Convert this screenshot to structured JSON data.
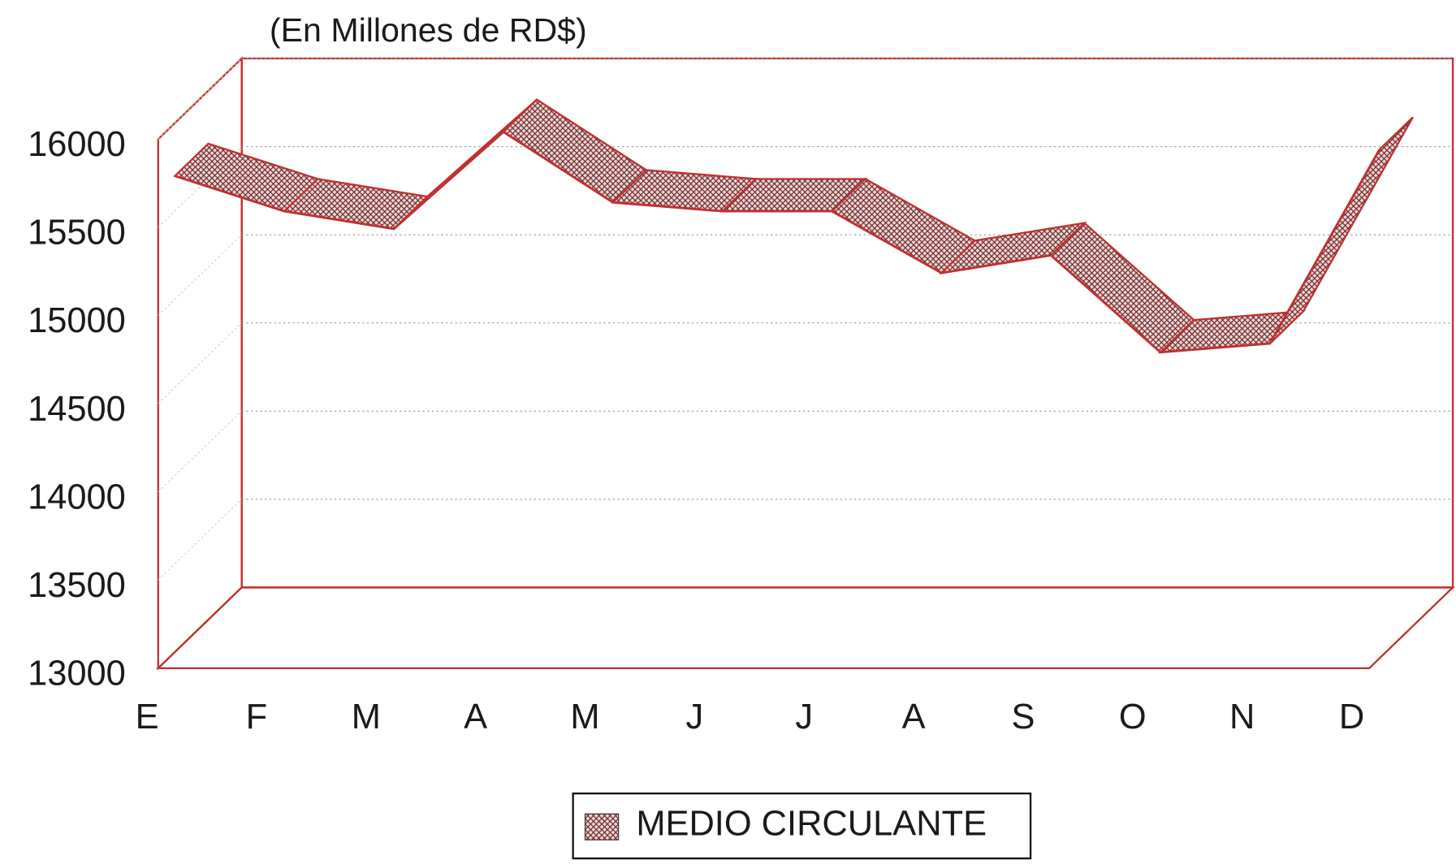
{
  "chart_data": {
    "type": "ribbon3d",
    "subtitle": "(En Millones de RD$)",
    "categories": [
      "E",
      "F",
      "M",
      "A",
      "M",
      "J",
      "J",
      "A",
      "S",
      "O",
      "N",
      "D"
    ],
    "series": [
      {
        "name": "MEDIO CIRCULANTE",
        "color": "#c03030",
        "values": [
          15700,
          15500,
          15400,
          15950,
          15550,
          15500,
          15500,
          15150,
          15250,
          14700,
          14750,
          15850
        ]
      }
    ],
    "ylim": [
      13000,
      16000
    ],
    "yticks": [
      13000,
      13500,
      14000,
      14500,
      15000,
      15500,
      16000
    ],
    "grid": true,
    "legend": "bottom"
  }
}
